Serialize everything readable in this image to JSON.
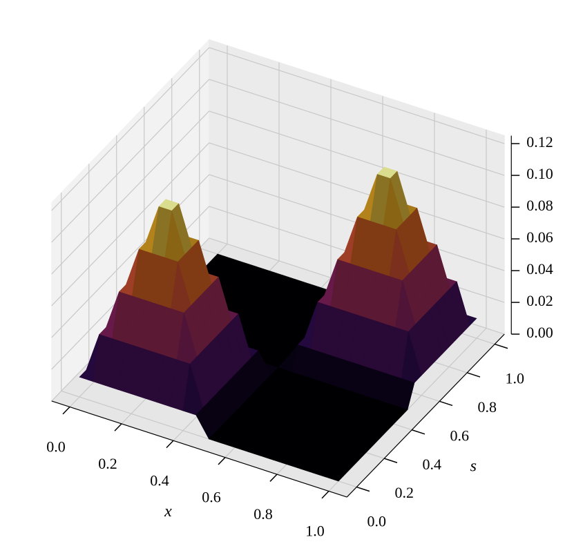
{
  "chart_data": {
    "type": "surface",
    "x": [
      0,
      0.05,
      0.1,
      0.15,
      0.2,
      0.25,
      0.3,
      0.35,
      0.4,
      0.45,
      0.5,
      0.55,
      0.6,
      0.65,
      0.7,
      0.75,
      0.8,
      0.85,
      0.9,
      0.95,
      1
    ],
    "y": [
      0,
      0.05,
      0.1,
      0.15,
      0.2,
      0.25,
      0.3,
      0.35,
      0.4,
      0.45,
      0.5,
      0.55,
      0.6,
      0.65,
      0.7,
      0.75,
      0.8,
      0.85,
      0.9,
      0.95,
      1
    ],
    "z": [
      [
        0.0125,
        0.0125,
        0.0125,
        0.0125,
        0.0125,
        0.0125,
        0.0125,
        0.0125,
        0.0125,
        0.0125,
        0,
        0,
        0,
        0,
        0,
        0,
        0,
        0,
        0,
        0,
        0
      ],
      [
        0.0125,
        0.0375,
        0.0375,
        0.0375,
        0.0375,
        0.0375,
        0.0375,
        0.0375,
        0.0375,
        0.0125,
        0,
        0,
        0,
        0,
        0,
        0,
        0,
        0,
        0,
        0,
        0
      ],
      [
        0.0125,
        0.0375,
        0.0625,
        0.0625,
        0.0625,
        0.0625,
        0.0625,
        0.0625,
        0.0375,
        0.0125,
        0,
        0,
        0,
        0,
        0,
        0,
        0,
        0,
        0,
        0,
        0
      ],
      [
        0.0125,
        0.0375,
        0.0625,
        0.0875,
        0.0875,
        0.0875,
        0.0875,
        0.0625,
        0.0375,
        0.0125,
        0,
        0,
        0,
        0,
        0,
        0,
        0,
        0,
        0,
        0,
        0
      ],
      [
        0.0125,
        0.0375,
        0.0625,
        0.0875,
        0.1125,
        0.1125,
        0.0875,
        0.0625,
        0.0375,
        0.0125,
        0,
        0,
        0,
        0,
        0,
        0,
        0,
        0,
        0,
        0,
        0
      ],
      [
        0.0125,
        0.0375,
        0.0625,
        0.0875,
        0.1125,
        0.1125,
        0.0875,
        0.0625,
        0.0375,
        0.0125,
        0,
        0,
        0,
        0,
        0,
        0,
        0,
        0,
        0,
        0,
        0
      ],
      [
        0.0125,
        0.0375,
        0.0625,
        0.0875,
        0.0875,
        0.0875,
        0.0875,
        0.0625,
        0.0375,
        0.0125,
        0,
        0,
        0,
        0,
        0,
        0,
        0,
        0,
        0,
        0,
        0
      ],
      [
        0.0125,
        0.0375,
        0.0625,
        0.0625,
        0.0625,
        0.0625,
        0.0625,
        0.0625,
        0.0375,
        0.0125,
        0,
        0,
        0,
        0,
        0,
        0,
        0,
        0,
        0,
        0,
        0
      ],
      [
        0.0125,
        0.0375,
        0.0375,
        0.0375,
        0.0375,
        0.0375,
        0.0375,
        0.0375,
        0.0375,
        0.0125,
        0,
        0,
        0,
        0,
        0,
        0,
        0,
        0,
        0,
        0,
        0
      ],
      [
        0.0125,
        0.0125,
        0.0125,
        0.0125,
        0.0125,
        0.0125,
        0.0125,
        0.0125,
        0.0125,
        0.0125,
        0,
        0,
        0,
        0,
        0,
        0,
        0,
        0,
        0,
        0,
        0
      ],
      [
        0,
        0,
        0,
        0,
        0,
        0,
        0,
        0,
        0,
        0,
        0,
        0,
        0,
        0,
        0,
        0,
        0,
        0,
        0,
        0,
        0
      ],
      [
        0,
        0,
        0,
        0,
        0,
        0,
        0,
        0,
        0,
        0,
        0,
        0.0125,
        0.0125,
        0.0125,
        0.0125,
        0.0125,
        0.0125,
        0.0125,
        0.0125,
        0.0125,
        0.0125
      ],
      [
        0,
        0,
        0,
        0,
        0,
        0,
        0,
        0,
        0,
        0,
        0,
        0.0125,
        0.0375,
        0.0375,
        0.0375,
        0.0375,
        0.0375,
        0.0375,
        0.0375,
        0.0375,
        0.0125
      ],
      [
        0,
        0,
        0,
        0,
        0,
        0,
        0,
        0,
        0,
        0,
        0,
        0.0125,
        0.0375,
        0.0625,
        0.0625,
        0.0625,
        0.0625,
        0.0625,
        0.0625,
        0.0375,
        0.0125
      ],
      [
        0,
        0,
        0,
        0,
        0,
        0,
        0,
        0,
        0,
        0,
        0,
        0.0125,
        0.0375,
        0.0625,
        0.0875,
        0.0875,
        0.0875,
        0.0875,
        0.0625,
        0.0375,
        0.0125
      ],
      [
        0,
        0,
        0,
        0,
        0,
        0,
        0,
        0,
        0,
        0,
        0,
        0.0125,
        0.0375,
        0.0625,
        0.0875,
        0.1125,
        0.1125,
        0.0875,
        0.0625,
        0.0375,
        0.0125
      ],
      [
        0,
        0,
        0,
        0,
        0,
        0,
        0,
        0,
        0,
        0,
        0,
        0.0125,
        0.0375,
        0.0625,
        0.0875,
        0.1125,
        0.1125,
        0.0875,
        0.0625,
        0.0375,
        0.0125
      ],
      [
        0,
        0,
        0,
        0,
        0,
        0,
        0,
        0,
        0,
        0,
        0,
        0.0125,
        0.0375,
        0.0625,
        0.0875,
        0.0875,
        0.0875,
        0.0875,
        0.0625,
        0.0375,
        0.0125
      ],
      [
        0,
        0,
        0,
        0,
        0,
        0,
        0,
        0,
        0,
        0,
        0,
        0.0125,
        0.0375,
        0.0625,
        0.0625,
        0.0625,
        0.0625,
        0.0625,
        0.0625,
        0.0375,
        0.0125
      ],
      [
        0,
        0,
        0,
        0,
        0,
        0,
        0,
        0,
        0,
        0,
        0,
        0.0125,
        0.0375,
        0.0375,
        0.0375,
        0.0375,
        0.0375,
        0.0375,
        0.0375,
        0.0375,
        0.0125
      ],
      [
        0,
        0,
        0,
        0,
        0,
        0,
        0,
        0,
        0,
        0,
        0,
        0.0125,
        0.0125,
        0.0125,
        0.0125,
        0.0125,
        0.0125,
        0.0125,
        0.0125,
        0.0125,
        0.0125
      ]
    ],
    "xlabel": "x",
    "ylabel": "s",
    "xlim": [
      0,
      1
    ],
    "ylim": [
      0,
      1
    ],
    "zlim": [
      0,
      0.125
    ],
    "xticks": [
      {
        "value": 0,
        "label": "0.0"
      },
      0.2,
      0.4,
      0.6,
      0.8,
      {
        "value": 1,
        "label": "1.0"
      }
    ],
    "yticks": [
      {
        "value": 0,
        "label": "0.0"
      },
      0.2,
      0.4,
      0.6,
      0.8,
      {
        "value": 1,
        "label": "1.0"
      }
    ],
    "zticks": [
      {
        "value": 0,
        "label": "0.00"
      },
      0.02,
      0.04,
      0.06,
      0.08,
      {
        "value": 0.1,
        "label": "0.10"
      },
      0.12
    ],
    "cmap": "inferno",
    "grid": true
  }
}
